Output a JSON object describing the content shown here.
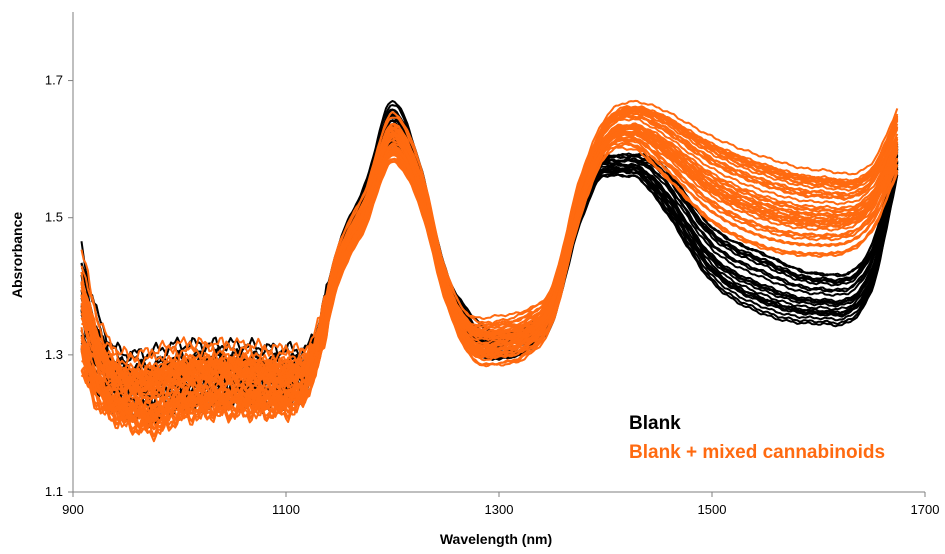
{
  "chart_data": {
    "type": "line",
    "title": "",
    "xlabel": "Wavelength (nm)",
    "ylabel": "Absrorbance",
    "xlim": [
      900,
      1700
    ],
    "ylim": [
      1.1,
      1.8
    ],
    "xticks": [
      "900",
      "1100",
      "1300",
      "1500",
      "1700"
    ],
    "yticks": [
      "1.1",
      "1.3",
      "1.5",
      "1.7"
    ],
    "grid": false,
    "legend_position": "bottom-right",
    "x": [
      908,
      925,
      950,
      975,
      1000,
      1050,
      1100,
      1125,
      1150,
      1175,
      1200,
      1225,
      1250,
      1275,
      1300,
      1325,
      1350,
      1375,
      1400,
      1425,
      1450,
      1500,
      1550,
      1600,
      1650,
      1675
    ],
    "series": [
      {
        "name": "Blank",
        "color": "#000000",
        "typical_values": [
          1.4,
          1.31,
          1.27,
          1.24,
          1.25,
          1.25,
          1.26,
          1.29,
          1.44,
          1.52,
          1.63,
          1.55,
          1.4,
          1.33,
          1.3,
          1.31,
          1.36,
          1.5,
          1.58,
          1.58,
          1.55,
          1.44,
          1.4,
          1.38,
          1.43,
          1.59
        ],
        "range_low": [
          1.26,
          1.21,
          1.19,
          1.18,
          1.2,
          1.21,
          1.21,
          1.26,
          1.41,
          1.49,
          1.59,
          1.52,
          1.37,
          1.29,
          1.28,
          1.29,
          1.33,
          1.47,
          1.55,
          1.55,
          1.51,
          1.39,
          1.34,
          1.33,
          1.38,
          1.56
        ],
        "range_high": [
          1.47,
          1.36,
          1.31,
          1.32,
          1.33,
          1.33,
          1.32,
          1.33,
          1.47,
          1.56,
          1.68,
          1.59,
          1.43,
          1.37,
          1.35,
          1.36,
          1.4,
          1.54,
          1.6,
          1.6,
          1.59,
          1.5,
          1.46,
          1.43,
          1.47,
          1.62
        ]
      },
      {
        "name": "Blank + mixed cannabinoids",
        "color": "#FF6A10",
        "typical_values": [
          1.38,
          1.3,
          1.26,
          1.24,
          1.25,
          1.25,
          1.26,
          1.29,
          1.43,
          1.51,
          1.62,
          1.55,
          1.4,
          1.33,
          1.31,
          1.32,
          1.37,
          1.51,
          1.6,
          1.63,
          1.61,
          1.56,
          1.53,
          1.52,
          1.53,
          1.62
        ],
        "range_low": [
          1.24,
          1.2,
          1.18,
          1.17,
          1.19,
          1.2,
          1.2,
          1.25,
          1.4,
          1.48,
          1.57,
          1.51,
          1.37,
          1.28,
          1.27,
          1.28,
          1.33,
          1.48,
          1.58,
          1.59,
          1.56,
          1.48,
          1.44,
          1.43,
          1.47,
          1.56
        ],
        "range_high": [
          1.47,
          1.36,
          1.31,
          1.32,
          1.33,
          1.33,
          1.32,
          1.33,
          1.47,
          1.55,
          1.66,
          1.59,
          1.43,
          1.37,
          1.38,
          1.39,
          1.42,
          1.57,
          1.66,
          1.68,
          1.67,
          1.63,
          1.6,
          1.58,
          1.59,
          1.67
        ]
      }
    ]
  }
}
